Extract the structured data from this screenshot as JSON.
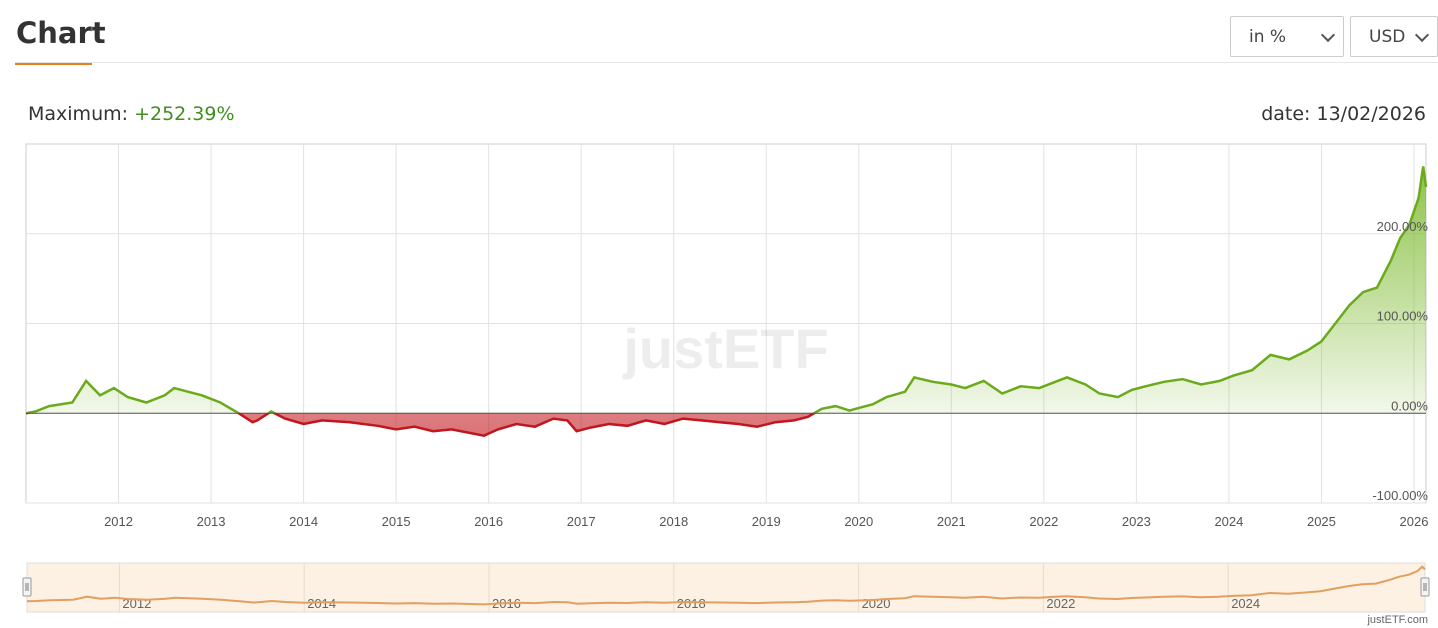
{
  "header": {
    "title": "Chart"
  },
  "controls": {
    "unit_select": "in %",
    "currency_select": "USD"
  },
  "summary": {
    "maximum_label": "Maximum:",
    "maximum_value": "+252.39%",
    "date_label": "date: 13/02/2026"
  },
  "watermark": "justETF",
  "credit": "justETF.com",
  "colors": {
    "positive": "#6aaa1b",
    "negative": "#c0161c",
    "navigator": "#e0a060",
    "accent": "#e8801e"
  },
  "chart_data": {
    "type": "area",
    "title": "",
    "xlabel": "",
    "ylabel": "",
    "ylim": [
      -100,
      300
    ],
    "xlim": [
      2011.0,
      2026.13
    ],
    "grid": true,
    "x_ticks": [
      "2012",
      "2013",
      "2014",
      "2015",
      "2016",
      "2017",
      "2018",
      "2019",
      "2020",
      "2021",
      "2022",
      "2023",
      "2024",
      "2025",
      "2026"
    ],
    "y_ticks": [
      "200.00%",
      "100.00%",
      "0.00%",
      "-100.00%"
    ],
    "navigator_ticks": [
      "2012",
      "2014",
      "2016",
      "2018",
      "2020",
      "2022",
      "2024"
    ],
    "series": [
      {
        "x": [
          2011.0,
          2011.1,
          2011.25,
          2011.5,
          2011.65,
          2011.8,
          2011.95,
          2012.1,
          2012.3,
          2012.5,
          2012.6,
          2012.75,
          2012.9,
          2013.1,
          2013.3,
          2013.45,
          2013.5,
          2013.65,
          2013.8,
          2014.0,
          2014.2,
          2014.5,
          2014.8,
          2015.0,
          2015.2,
          2015.4,
          2015.6,
          2015.8,
          2015.95,
          2016.1,
          2016.3,
          2016.5,
          2016.7,
          2016.85,
          2016.95,
          2017.1,
          2017.3,
          2017.5,
          2017.7,
          2017.9,
          2018.1,
          2018.3,
          2018.5,
          2018.7,
          2018.9,
          2019.1,
          2019.3,
          2019.45,
          2019.6,
          2019.75,
          2019.9,
          2020.0,
          2020.15,
          2020.3,
          2020.5,
          2020.6,
          2020.8,
          2021.0,
          2021.15,
          2021.35,
          2021.55,
          2021.75,
          2021.95,
          2022.1,
          2022.25,
          2022.45,
          2022.6,
          2022.8,
          2022.95,
          2023.1,
          2023.3,
          2023.5,
          2023.7,
          2023.9,
          2024.05,
          2024.25,
          2024.45,
          2024.65,
          2024.85,
          2025.0,
          2025.15,
          2025.3,
          2025.45,
          2025.6,
          2025.75,
          2025.85,
          2025.95,
          2026.05,
          2026.1,
          2026.13
        ],
        "y": [
          0,
          2,
          8,
          12,
          36,
          20,
          28,
          18,
          12,
          20,
          28,
          24,
          20,
          12,
          0,
          -10,
          -8,
          2,
          -6,
          -12,
          -8,
          -10,
          -14,
          -18,
          -15,
          -20,
          -18,
          -22,
          -25,
          -18,
          -12,
          -15,
          -6,
          -8,
          -20,
          -16,
          -12,
          -14,
          -8,
          -12,
          -6,
          -8,
          -10,
          -12,
          -15,
          -10,
          -8,
          -4,
          5,
          8,
          3,
          6,
          10,
          18,
          24,
          40,
          35,
          32,
          28,
          36,
          22,
          30,
          28,
          34,
          40,
          32,
          22,
          18,
          26,
          30,
          35,
          38,
          32,
          36,
          42,
          48,
          65,
          60,
          70,
          80,
          100,
          120,
          135,
          140,
          170,
          195,
          210,
          240,
          275,
          252
        ]
      }
    ]
  }
}
